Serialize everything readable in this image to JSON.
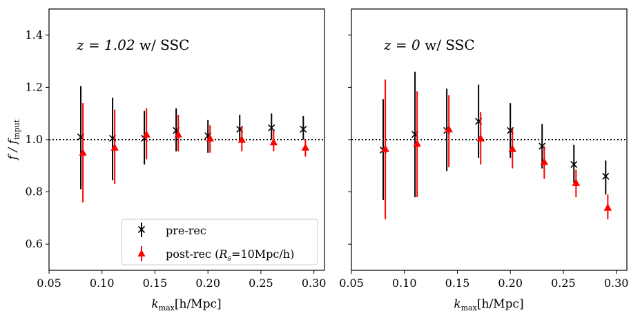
{
  "chart_data": [
    {
      "type": "scatter",
      "panel": "left",
      "annotation": {
        "z_part": "z = 1.02",
        "suffix": " w/ SSC"
      },
      "xlabel": {
        "main": "k",
        "sub": "max",
        "rest": "[h/Mpc]"
      },
      "ylabel": {
        "main": "f / f",
        "sub": "input"
      },
      "xlim": [
        0.05,
        0.31
      ],
      "ylim": [
        0.5,
        1.5
      ],
      "xticks": [
        0.05,
        0.1,
        0.15,
        0.2,
        0.25,
        0.3
      ],
      "xtick_labels": [
        "0.05",
        "0.10",
        "0.15",
        "0.20",
        "0.25",
        "0.30"
      ],
      "yticks": [
        0.6,
        0.8,
        1.0,
        1.2,
        1.4
      ],
      "ytick_labels": [
        "0.6",
        "0.8",
        "1.0",
        "1.2",
        "1.4"
      ],
      "reference_line": 1.0,
      "series": [
        {
          "name": "pre-rec",
          "marker": "x",
          "color": "#000000",
          "x": [
            0.08,
            0.11,
            0.14,
            0.17,
            0.2,
            0.23,
            0.26,
            0.29
          ],
          "y": [
            1.01,
            1.005,
            1.005,
            1.035,
            1.015,
            1.04,
            1.045,
            1.04
          ],
          "err_low": [
            0.81,
            0.845,
            0.905,
            0.955,
            0.95,
            0.99,
            1.0,
            1.0
          ],
          "err_high": [
            1.205,
            1.16,
            1.11,
            1.12,
            1.075,
            1.095,
            1.1,
            1.09
          ]
        },
        {
          "name": "post-rec (R_s=10Mpc/h)",
          "marker": "triangle",
          "color": "#ff0000",
          "x": [
            0.082,
            0.112,
            0.142,
            0.172,
            0.202,
            0.232,
            0.262,
            0.292
          ],
          "y": [
            0.95,
            0.97,
            1.02,
            1.02,
            1.005,
            1.0,
            0.99,
            0.97
          ],
          "err_low": [
            0.76,
            0.83,
            0.925,
            0.955,
            0.95,
            0.955,
            0.955,
            0.935
          ],
          "err_high": [
            1.14,
            1.115,
            1.12,
            1.095,
            1.055,
            1.05,
            1.035,
            1.0
          ]
        }
      ],
      "legend": {
        "placement": "bottom-right",
        "entries": [
          {
            "label": "pre-rec",
            "series": 0
          },
          {
            "label_pre": "post-rec (",
            "label_sym": "R",
            "label_sub": "s",
            "label_post": "=10Mpc/h)",
            "series": 1
          }
        ]
      }
    },
    {
      "type": "scatter",
      "panel": "right",
      "annotation": {
        "z_part": "z = 0",
        "suffix": " w/ SSC"
      },
      "xlabel": {
        "main": "k",
        "sub": "max",
        "rest": "[h/Mpc]"
      },
      "xlim": [
        0.05,
        0.31
      ],
      "ylim": [
        0.5,
        1.5
      ],
      "xticks": [
        0.05,
        0.1,
        0.15,
        0.2,
        0.25,
        0.3
      ],
      "xtick_labels": [
        "0.05",
        "0.10",
        "0.15",
        "0.20",
        "0.25",
        "0.30"
      ],
      "yticks": [
        0.6,
        0.8,
        1.0,
        1.2,
        1.4
      ],
      "reference_line": 1.0,
      "series": [
        {
          "name": "pre-rec",
          "marker": "x",
          "color": "#000000",
          "x": [
            0.08,
            0.11,
            0.14,
            0.17,
            0.2,
            0.23,
            0.26,
            0.29
          ],
          "y": [
            0.96,
            1.02,
            1.035,
            1.07,
            1.035,
            0.975,
            0.905,
            0.86
          ],
          "err_low": [
            0.77,
            0.78,
            0.88,
            0.93,
            0.93,
            0.89,
            0.835,
            0.79
          ],
          "err_high": [
            1.155,
            1.26,
            1.195,
            1.21,
            1.14,
            1.06,
            0.98,
            0.92
          ]
        },
        {
          "name": "post-rec (R_s=10Mpc/h)",
          "marker": "triangle",
          "color": "#ff0000",
          "x": [
            0.082,
            0.112,
            0.142,
            0.172,
            0.202,
            0.232,
            0.262,
            0.292
          ],
          "y": [
            0.965,
            0.985,
            1.04,
            1.005,
            0.965,
            0.915,
            0.835,
            0.74
          ],
          "err_low": [
            0.695,
            0.78,
            0.895,
            0.905,
            0.89,
            0.85,
            0.78,
            0.695
          ],
          "err_high": [
            1.23,
            1.185,
            1.17,
            1.105,
            1.04,
            0.975,
            0.885,
            0.79
          ]
        }
      ]
    }
  ]
}
